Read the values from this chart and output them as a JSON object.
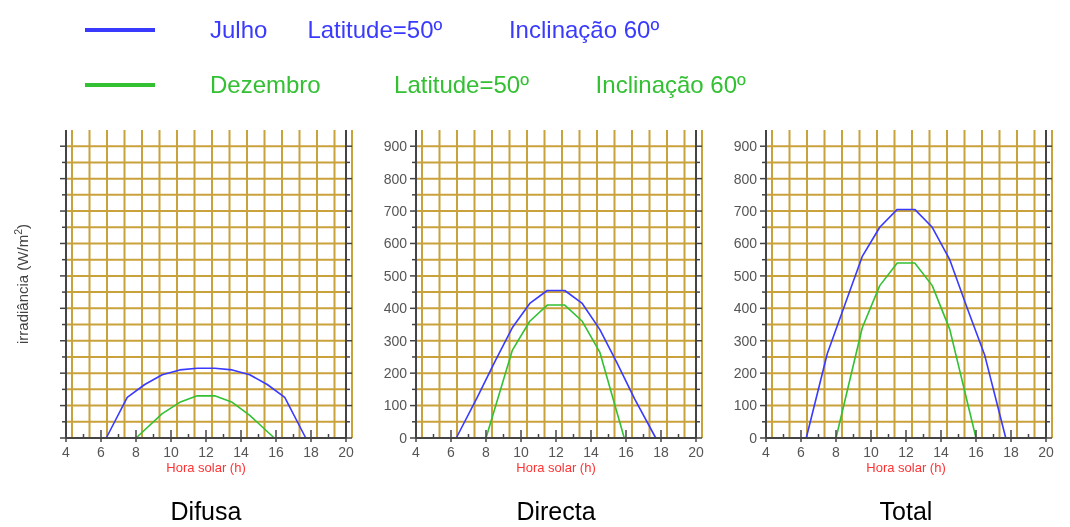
{
  "chart_data": [
    {
      "type": "line",
      "title": "Difusa",
      "xlabel": "Hora solar (h)",
      "ylabel": "irradiância (W/m$^{2}$)",
      "xlim": [
        4,
        20
      ],
      "ylim": [
        0,
        950
      ],
      "xticks": [
        4,
        {
          "value": 5,
          "label": null
        },
        6,
        {
          "value": 7,
          "label": null
        },
        8,
        {
          "value": 9,
          "label": null
        },
        10,
        {
          "value": 11,
          "label": null
        },
        12,
        {
          "value": 13,
          "label": null
        },
        14,
        {
          "value": 15,
          "label": null
        },
        16,
        {
          "value": 17,
          "label": null
        },
        18,
        {
          "value": 19,
          "label": null
        },
        20
      ],
      "yticks": [
        0,
        {
          "value": 50,
          "label": null
        },
        100,
        {
          "value": 150,
          "label": null
        },
        200,
        {
          "value": 250,
          "label": null
        },
        300,
        {
          "value": 350,
          "label": null
        },
        400,
        {
          "value": 450,
          "label": null
        },
        500,
        {
          "value": 550,
          "label": null
        },
        600,
        {
          "value": 650,
          "label": null
        },
        700,
        {
          "value": 750,
          "label": null
        },
        800,
        {
          "value": 850,
          "label": null
        },
        900
      ],
      "tick_labels": "x",
      "grid": true,
      "legend": "top",
      "series": [
        {
          "name": "Julho      Latitude=50º          Inclinação 60º",
          "color": "#3a3aff",
          "x": [
            6.3,
            7.5,
            8.5,
            9.5,
            10.5,
            11.5,
            12.5,
            13.5,
            14.5,
            15.5,
            16.5,
            17.7
          ],
          "values": [
            0,
            125,
            165,
            195,
            210,
            215,
            215,
            210,
            195,
            165,
            125,
            0
          ]
        },
        {
          "name": "Dezembro           Latitude=50º          Inclinação 60º",
          "color": "#33c033",
          "x": [
            8.0,
            9.5,
            10.5,
            11.5,
            12.5,
            13.5,
            14.5,
            15.9
          ],
          "values": [
            0,
            75,
            110,
            130,
            130,
            110,
            70,
            0
          ]
        }
      ]
    },
    {
      "type": "line",
      "title": "Directa",
      "xlabel": "Hora solar (h)",
      "xlim": [
        4,
        20
      ],
      "ylim": [
        0,
        950
      ],
      "xticks": [
        4,
        {
          "value": 5,
          "label": null
        },
        6,
        {
          "value": 7,
          "label": null
        },
        8,
        {
          "value": 9,
          "label": null
        },
        10,
        {
          "value": 11,
          "label": null
        },
        12,
        {
          "value": 13,
          "label": null
        },
        14,
        {
          "value": 15,
          "label": null
        },
        16,
        {
          "value": 17,
          "label": null
        },
        18,
        {
          "value": 19,
          "label": null
        },
        20
      ],
      "yticks": [
        0,
        {
          "value": 50,
          "label": null
        },
        100,
        {
          "value": 150,
          "label": null
        },
        200,
        {
          "value": 250,
          "label": null
        },
        300,
        {
          "value": 350,
          "label": null
        },
        400,
        {
          "value": 450,
          "label": null
        },
        500,
        {
          "value": 550,
          "label": null
        },
        600,
        {
          "value": 650,
          "label": null
        },
        700,
        {
          "value": 750,
          "label": null
        },
        800,
        {
          "value": 850,
          "label": null
        },
        900
      ],
      "grid": true,
      "series": [
        {
          "color": "#3a3aff",
          "x": [
            6.3,
            7.5,
            8.5,
            9.5,
            10.5,
            11.5,
            12.5,
            13.5,
            14.5,
            15.5,
            16.5,
            17.7
          ],
          "values": [
            0,
            125,
            235,
            340,
            415,
            455,
            455,
            415,
            335,
            230,
            120,
            0
          ]
        },
        {
          "color": "#33c033",
          "x": [
            8.0,
            9.5,
            10.5,
            11.5,
            12.5,
            13.5,
            14.5,
            15.9
          ],
          "values": [
            0,
            270,
            360,
            410,
            410,
            360,
            265,
            0
          ]
        }
      ]
    },
    {
      "type": "line",
      "title": "Total",
      "xlabel": "Hora solar (h)",
      "xlim": [
        4,
        20
      ],
      "ylim": [
        0,
        950
      ],
      "xticks": [
        4,
        {
          "value": 5,
          "label": null
        },
        6,
        {
          "value": 7,
          "label": null
        },
        8,
        {
          "value": 9,
          "label": null
        },
        10,
        {
          "value": 11,
          "label": null
        },
        12,
        {
          "value": 13,
          "label": null
        },
        14,
        {
          "value": 15,
          "label": null
        },
        16,
        {
          "value": 17,
          "label": null
        },
        18,
        {
          "value": 19,
          "label": null
        },
        20
      ],
      "yticks": [
        0,
        {
          "value": 50,
          "label": null
        },
        100,
        {
          "value": 150,
          "label": null
        },
        200,
        {
          "value": 250,
          "label": null
        },
        300,
        {
          "value": 350,
          "label": null
        },
        400,
        {
          "value": 450,
          "label": null
        },
        500,
        {
          "value": 550,
          "label": null
        },
        600,
        {
          "value": 650,
          "label": null
        },
        700,
        {
          "value": 750,
          "label": null
        },
        800,
        {
          "value": 850,
          "label": null
        },
        900
      ],
      "grid": true,
      "series": [
        {
          "color": "#3a3aff",
          "x": [
            6.3,
            7.5,
            8.5,
            9.5,
            10.5,
            11.5,
            12.5,
            13.5,
            14.5,
            15.5,
            16.5,
            17.7
          ],
          "values": [
            0,
            260,
            410,
            560,
            650,
            705,
            705,
            650,
            550,
            400,
            255,
            0
          ]
        },
        {
          "color": "#33c033",
          "x": [
            8.0,
            9.5,
            10.5,
            11.5,
            12.5,
            13.5,
            14.5,
            16.0
          ],
          "values": [
            0,
            340,
            470,
            540,
            540,
            470,
            335,
            0
          ]
        }
      ]
    }
  ]
}
